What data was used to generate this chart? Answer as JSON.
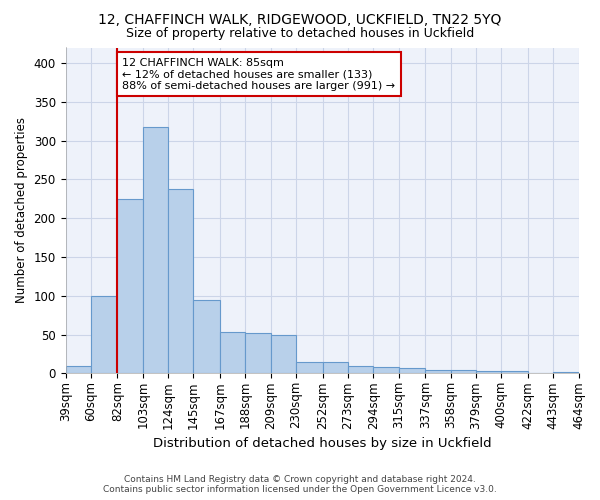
{
  "title1": "12, CHAFFINCH WALK, RIDGEWOOD, UCKFIELD, TN22 5YQ",
  "title2": "Size of property relative to detached houses in Uckfield",
  "xlabel": "Distribution of detached houses by size in Uckfield",
  "ylabel": "Number of detached properties",
  "footer1": "Contains HM Land Registry data © Crown copyright and database right 2024.",
  "footer2": "Contains public sector information licensed under the Open Government Licence v3.0.",
  "annotation_line1": "12 CHAFFINCH WALK: 85sqm",
  "annotation_line2": "← 12% of detached houses are smaller (133)",
  "annotation_line3": "88% of semi-detached houses are larger (991) →",
  "bar_edges": [
    39,
    60,
    82,
    103,
    124,
    145,
    167,
    188,
    209,
    230,
    252,
    273,
    294,
    315,
    337,
    358,
    379,
    400,
    422,
    443,
    464
  ],
  "bar_heights": [
    10,
    100,
    225,
    318,
    238,
    95,
    53,
    52,
    50,
    15,
    15,
    10,
    8,
    7,
    4,
    4,
    3,
    3,
    1,
    2
  ],
  "bar_color": "#b8d0ea",
  "bar_edgecolor": "#6699cc",
  "vline_color": "#cc0000",
  "vline_x": 82,
  "grid_color": "#ccd5e8",
  "bg_color": "#eef2fa",
  "ylim": [
    0,
    420
  ],
  "yticks": [
    0,
    50,
    100,
    150,
    200,
    250,
    300,
    350,
    400
  ],
  "xtick_labels": [
    "39sqm",
    "60sqm",
    "82sqm",
    "103sqm",
    "124sqm",
    "145sqm",
    "167sqm",
    "188sqm",
    "209sqm",
    "230sqm",
    "252sqm",
    "273sqm",
    "294sqm",
    "315sqm",
    "337sqm",
    "358sqm",
    "379sqm",
    "400sqm",
    "422sqm",
    "443sqm",
    "464sqm"
  ]
}
